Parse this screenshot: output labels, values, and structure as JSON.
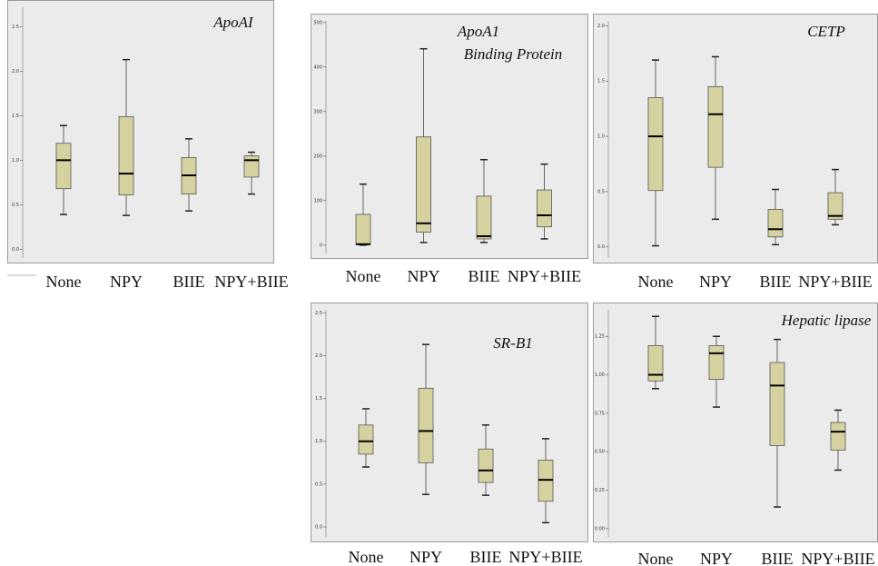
{
  "chart_data": [
    {
      "type": "box",
      "title": "ApoAI",
      "categories": [
        "None",
        "NPY",
        "BIIE",
        "NPY+BIIE"
      ],
      "color": "#d6d2a0",
      "boxes": [
        {
          "min": 0.39,
          "q1": 0.68,
          "median": 1.0,
          "q3": 1.19,
          "max": 1.39
        },
        {
          "min": 0.38,
          "q1": 0.61,
          "median": 0.85,
          "q3": 1.49,
          "max": 2.13
        },
        {
          "min": 0.43,
          "q1": 0.62,
          "median": 0.83,
          "q3": 1.03,
          "max": 1.24
        },
        {
          "min": 0.62,
          "q1": 0.81,
          "median": 1.0,
          "q3": 1.05,
          "max": 1.09
        }
      ],
      "ylim": [
        -0.16,
        2.8
      ],
      "yticks": [
        {
          "value": 0,
          "label": "0.0"
        },
        0.5,
        {
          "value": 1,
          "label": "1.0"
        },
        1.5,
        {
          "value": 2,
          "label": "2.0"
        },
        2.5
      ]
    },
    {
      "type": "box",
      "title": [
        "ApoA1",
        "Binding Protein"
      ],
      "categories": [
        "None",
        "NPY",
        "BIIE",
        "NPY+BIIE"
      ],
      "color": "#d6d2a0",
      "boxes": [
        {
          "min": 0,
          "q1": 2,
          "median": 2,
          "q3": 69,
          "max": 137
        },
        {
          "min": 6,
          "q1": 29,
          "median": 49,
          "q3": 243,
          "max": 441
        },
        {
          "min": 6,
          "q1": 14,
          "median": 20,
          "q3": 110,
          "max": 192
        },
        {
          "min": 14,
          "q1": 41,
          "median": 67,
          "q3": 124,
          "max": 182
        }
      ],
      "ylim": [
        -31,
        520
      ],
      "yticks": [
        0,
        100,
        200,
        300,
        400,
        500
      ]
    },
    {
      "type": "box",
      "title": "CETP",
      "categories": [
        "None",
        "NPY",
        "BIIE",
        "NPY+BIIE"
      ],
      "color": "#d6d2a0",
      "boxes": [
        {
          "min": 0.01,
          "q1": 0.51,
          "median": 1.0,
          "q3": 1.35,
          "max": 1.69
        },
        {
          "min": 0.25,
          "q1": 0.72,
          "median": 1.2,
          "q3": 1.45,
          "max": 1.72
        },
        {
          "min": 0.02,
          "q1": 0.09,
          "median": 0.16,
          "q3": 0.34,
          "max": 0.52
        },
        {
          "min": 0.2,
          "q1": 0.25,
          "median": 0.28,
          "q3": 0.49,
          "max": 0.7
        }
      ],
      "ylim": [
        -0.15,
        2.11
      ],
      "yticks": [
        {
          "value": 0,
          "label": "0.0"
        },
        0.5,
        {
          "value": 1,
          "label": "1.0"
        },
        1.5,
        {
          "value": 2,
          "label": "2.0"
        }
      ]
    },
    {
      "type": "box",
      "title": "SR-B1",
      "categories": [
        "None",
        "NPY",
        "BIIE",
        "NPY+BIIE"
      ],
      "color": "#d6d2a0",
      "boxes": [
        {
          "min": 0.7,
          "q1": 0.85,
          "median": 1.0,
          "q3": 1.19,
          "max": 1.38
        },
        {
          "min": 0.38,
          "q1": 0.75,
          "median": 1.12,
          "q3": 1.62,
          "max": 2.13
        },
        {
          "min": 0.37,
          "q1": 0.52,
          "median": 0.66,
          "q3": 0.91,
          "max": 1.19
        },
        {
          "min": 0.05,
          "q1": 0.3,
          "median": 0.55,
          "q3": 0.78,
          "max": 1.03
        }
      ],
      "ylim": [
        -0.18,
        2.62
      ],
      "yticks": [
        {
          "value": 0,
          "label": "0.0"
        },
        0.5,
        {
          "value": 1,
          "label": "1.0"
        },
        1.5,
        {
          "value": 2,
          "label": "2.0"
        },
        2.5
      ]
    },
    {
      "type": "box",
      "title": "Hepatic lipase",
      "categories": [
        "None",
        "NPY",
        "BIIE",
        "NPY+BIIE"
      ],
      "color": "#d6d2a0",
      "boxes": [
        {
          "min": 0.91,
          "q1": 0.96,
          "median": 1.0,
          "q3": 1.19,
          "max": 1.38
        },
        {
          "min": 0.79,
          "q1": 0.97,
          "median": 1.14,
          "q3": 1.19,
          "max": 1.25
        },
        {
          "min": 0.14,
          "q1": 0.54,
          "median": 0.93,
          "q3": 1.08,
          "max": 1.23
        },
        {
          "min": 0.38,
          "q1": 0.51,
          "median": 0.63,
          "q3": 0.69,
          "max": 0.77
        }
      ],
      "ylim": [
        -0.09,
        1.47
      ],
      "yticks": [
        {
          "value": 0,
          "label": "0.00"
        },
        0.25,
        {
          "value": 0.5,
          "label": "0.50"
        },
        0.75,
        {
          "value": 1,
          "label": "1.00"
        },
        1.25
      ]
    }
  ]
}
